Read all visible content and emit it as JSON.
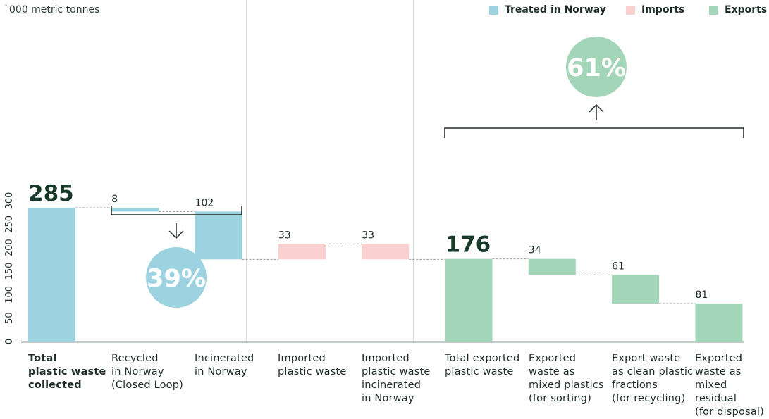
{
  "unit_label": "`000 metric tonnes",
  "legend": [
    {
      "label": "Treated in Norway",
      "color": "#9dd3e0"
    },
    {
      "label": "Imports",
      "color": "#f9cfd0"
    },
    {
      "label": "Exports",
      "color": "#a3d5b8"
    }
  ],
  "chart_data": {
    "type": "bar",
    "subtype": "waterfall",
    "ylabel": "`000 metric tonnes",
    "ylim": [
      0,
      300
    ],
    "yticks": [
      0,
      50,
      100,
      150,
      200,
      250,
      300
    ],
    "categories": [
      "Total\nplastic waste\ncollected",
      "Recycled\nin Norway\n(Closed Loop)",
      "Incinerated\nin Norway",
      "Imported\nplastic waste",
      "Imported\nplastic waste\nincinerated\nin Norway",
      "Total exported\nplastic waste",
      "Exported\nwaste as\nmixed plastics\n(for sorting)",
      "Export waste\nas clean plastic\nfractions\n(for recycling)",
      "Exported\nwaste as\nmixed residual\n(for disposal)"
    ],
    "bars": [
      {
        "label": "285",
        "value": 285,
        "base": 0,
        "top": 285,
        "group": "treated",
        "total": true
      },
      {
        "label": "8",
        "value": 8,
        "base": 277,
        "top": 285,
        "group": "treated",
        "total": false
      },
      {
        "label": "102",
        "value": 102,
        "base": 175,
        "top": 277,
        "group": "treated",
        "total": false
      },
      {
        "label": "33",
        "value": 33,
        "base": 175,
        "top": 208,
        "group": "imports",
        "total": false
      },
      {
        "label": "33",
        "value": 33,
        "base": 175,
        "top": 208,
        "group": "imports",
        "total": false
      },
      {
        "label": "176",
        "value": 176,
        "base": 0,
        "top": 176,
        "group": "exports",
        "total": true
      },
      {
        "label": "34",
        "value": 34,
        "base": 142,
        "top": 176,
        "group": "exports",
        "total": false
      },
      {
        "label": "61",
        "value": 61,
        "base": 81,
        "top": 142,
        "group": "exports",
        "total": false
      },
      {
        "label": "81",
        "value": 81,
        "base": 0,
        "top": 81,
        "group": "exports",
        "total": false
      }
    ],
    "annotations": [
      {
        "label": "39%",
        "color": "#9dd3e0",
        "text_color": "#ffffff"
      },
      {
        "label": "61%",
        "color": "#a3d5b8",
        "text_color": "#ffffff"
      }
    ]
  }
}
